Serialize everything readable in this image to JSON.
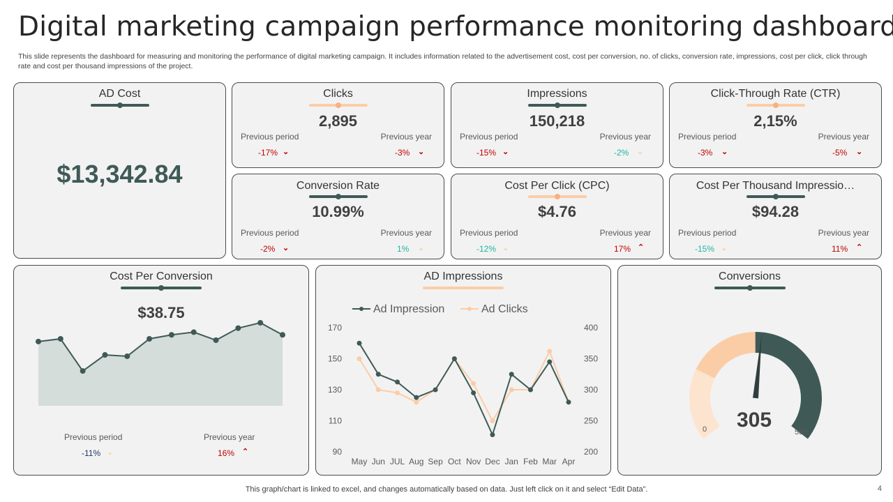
{
  "title": "Digital marketing campaign performance monitoring dashboard",
  "subtitle": "This slide represents the dashboard for measuring and monitoring the performance of digital marketing campaign. It includes information related to the advertisement cost, cost per conversion, no. of clicks, conversion rate, impressions, cost per click, click through rate and cost per thousand impressions of the project.",
  "colors": {
    "dark": "#3f5a56",
    "peach": "#fbcda7",
    "red": "#c00000",
    "teal": "#1fb5a0",
    "card_bg": "#f2f2f2"
  },
  "ad_cost": {
    "title": "AD Cost",
    "value": "$13,342.84"
  },
  "kpis": [
    {
      "title": "Clicks",
      "value": "2,895",
      "prev_period_label": "Previous period",
      "prev_period": "-17%",
      "prev_year_label": "Previous year",
      "prev_year": "-3%"
    },
    {
      "title": "Impressions",
      "value": "150,218",
      "prev_period_label": "Previous period",
      "prev_period": "-15%",
      "prev_year_label": "Previous year",
      "prev_year": "-2%"
    },
    {
      "title": "Click-Through Rate (CTR)",
      "value": "2,15%",
      "prev_period_label": "Previous period",
      "prev_period": "-3%",
      "prev_year_label": "Previous year",
      "prev_year": "-5%"
    },
    {
      "title": "Conversion Rate",
      "value": "10.99%",
      "prev_period_label": "Previous period",
      "prev_period": "-2%",
      "prev_year_label": "Previous year",
      "prev_year": "1%"
    },
    {
      "title": "Cost Per Click (CPC)",
      "value": "$4.76",
      "prev_period_label": "Previous period",
      "prev_period": "-12%",
      "prev_year_label": "Previous year",
      "prev_year": "17%"
    },
    {
      "title": "Cost Per Thousand Impressio…",
      "value": "$94.28",
      "prev_period_label": "Previous period",
      "prev_period": "-15%",
      "prev_year_label": "Previous year",
      "prev_year": "11%"
    }
  ],
  "cost_per_conversion": {
    "title": "Cost Per Conversion",
    "value": "$38.75",
    "prev_period_label": "Previous period",
    "prev_period": "-11%",
    "prev_year_label": "Previous year",
    "prev_year": "16%"
  },
  "ad_impressions": {
    "title": "AD Impressions"
  },
  "conversions": {
    "title": "Conversions",
    "value": "305",
    "min_label": "0",
    "max_label": "585"
  },
  "footer": "This graph/chart is linked to excel,  and changes automatically based on data. Just left click on it and select “Edit Data”.",
  "page_number": "4",
  "chart_data": [
    {
      "type": "area",
      "values": [
        48,
        50,
        26,
        38,
        37,
        50,
        53,
        55,
        49,
        58,
        62,
        53
      ],
      "ylim": [
        0,
        100
      ]
    },
    {
      "type": "line",
      "categories": [
        "May",
        "Jun",
        "JUL",
        "Aug",
        "Sep",
        "Oct",
        "Nov",
        "Dec",
        "Jan",
        "Feb",
        "Mar",
        "Apr"
      ],
      "series": [
        {
          "name": "Ad Impression",
          "axis": "left",
          "color": "#3f5a56",
          "values": [
            160,
            140,
            135,
            125,
            130,
            150,
            128,
            101,
            140,
            130,
            148,
            122
          ]
        },
        {
          "name": "Ad Clicks",
          "axis": "right",
          "color": "#fbcda7",
          "values": [
            350,
            300,
            295,
            280,
            300,
            350,
            310,
            250,
            300,
            300,
            362,
            280
          ]
        }
      ],
      "left_ticks": [
        "170",
        "150",
        "130",
        "110",
        "90"
      ],
      "right_ticks": [
        "400",
        "350",
        "300",
        "250",
        "200"
      ],
      "ylim_left": [
        90,
        170
      ],
      "ylim_right": [
        200,
        400
      ],
      "legend": "top-left"
    },
    {
      "type": "gauge",
      "value": 305,
      "min": 0,
      "max": 585,
      "bands": [
        {
          "from": 0,
          "to": 146,
          "color": "#fde4cf"
        },
        {
          "from": 146,
          "to": 292,
          "color": "#fbcda7"
        },
        {
          "from": 292,
          "to": 585,
          "color": "#3f5a56"
        }
      ]
    }
  ]
}
